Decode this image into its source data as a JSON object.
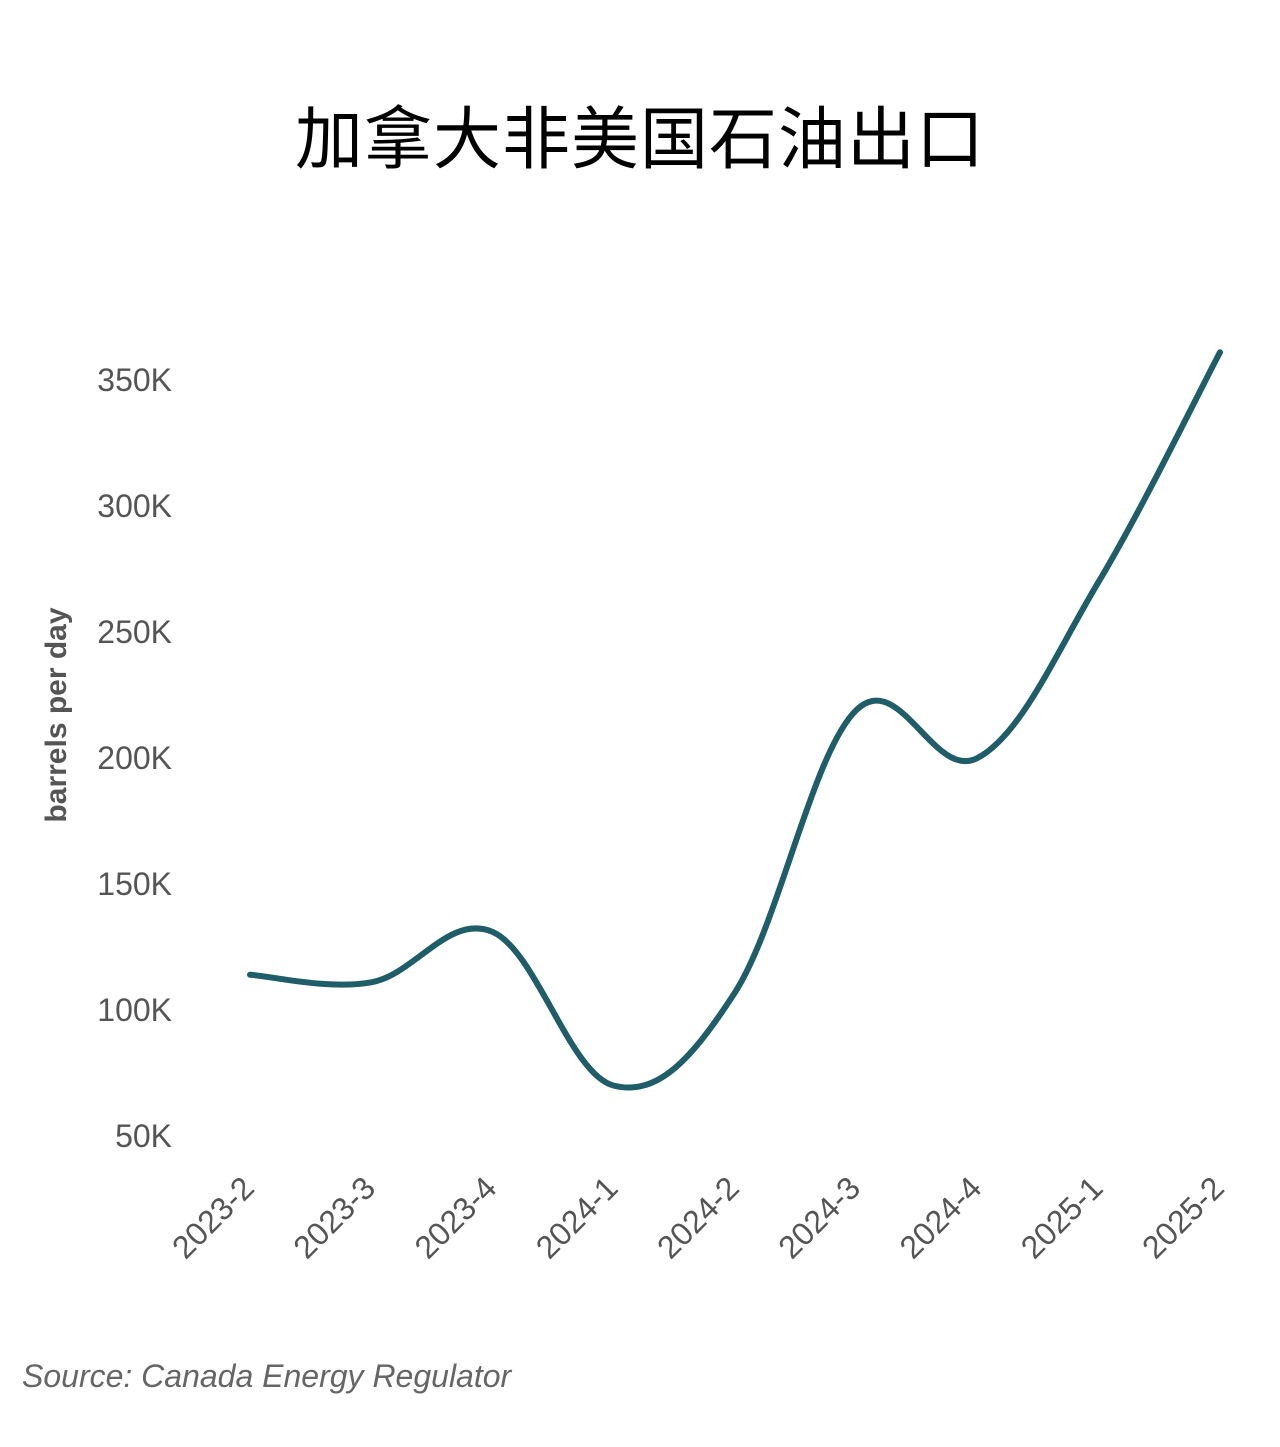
{
  "title": "加拿大非美国石油出口",
  "source": "Source: Canada Energy Regulator",
  "colors": {
    "line": "#1f5d68",
    "text": "#555555"
  },
  "chart_data": {
    "type": "line",
    "title": "加拿大非美国石油出口",
    "ylabel": "barrels per day",
    "xlabel": "",
    "categories": [
      "2023-2",
      "2023-3",
      "2023-4",
      "2024-1",
      "2024-2",
      "2024-3",
      "2024-4",
      "2025-1",
      "2025-2"
    ],
    "series": [
      {
        "values": [
          114000,
          111000,
          131000,
          70000,
          107000,
          219000,
          200000,
          270000,
          361000
        ]
      }
    ],
    "ylim": [
      50000,
      350000
    ],
    "yticks": [
      50000,
      100000,
      150000,
      200000,
      250000,
      300000,
      350000
    ],
    "ytick_labels": [
      "50K",
      "100K",
      "150K",
      "200K",
      "250K",
      "300K",
      "350K"
    ],
    "grid": false,
    "legend": "none"
  }
}
